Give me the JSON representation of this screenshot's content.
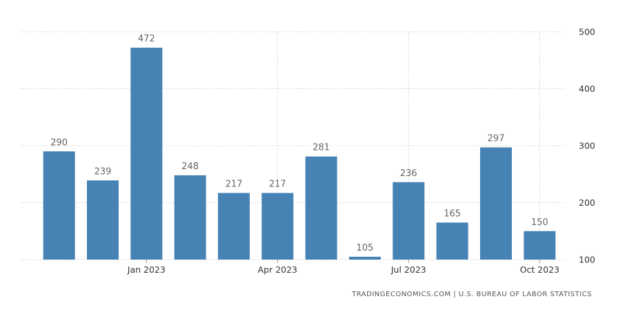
{
  "chart_data": {
    "type": "bar",
    "title": "",
    "xlabel": "",
    "ylabel": "",
    "categories": [
      "Nov 2022",
      "Dec 2022",
      "Jan 2023",
      "Feb 2023",
      "Mar 2023",
      "Apr 2023",
      "May 2023",
      "Jun 2023",
      "Jul 2023",
      "Aug 2023",
      "Sep 2023",
      "Oct 2023"
    ],
    "values": [
      290,
      239,
      472,
      248,
      217,
      217,
      281,
      105,
      236,
      165,
      297,
      150
    ],
    "ylim": [
      100,
      500
    ],
    "y_ticks": [
      {
        "value": 500,
        "label": "500"
      },
      {
        "value": 400,
        "label": "400"
      },
      {
        "value": 300,
        "label": "300"
      },
      {
        "value": 200,
        "label": "200"
      },
      {
        "value": 100,
        "label": "100"
      }
    ],
    "x_ticks": [
      {
        "category": "Jan 2023",
        "label": "Jan 2023"
      },
      {
        "category": "Apr 2023",
        "label": "Apr 2023"
      },
      {
        "category": "Jul 2023",
        "label": "Jul 2023"
      },
      {
        "category": "Oct 2023",
        "label": "Oct 2023"
      }
    ],
    "y_axis_position": "right",
    "grid": true,
    "bar_color": "#4682b4",
    "data_labels": true
  },
  "source": "TRADINGECONOMICS.COM  |  U.S. BUREAU OF LABOR STATISTICS"
}
